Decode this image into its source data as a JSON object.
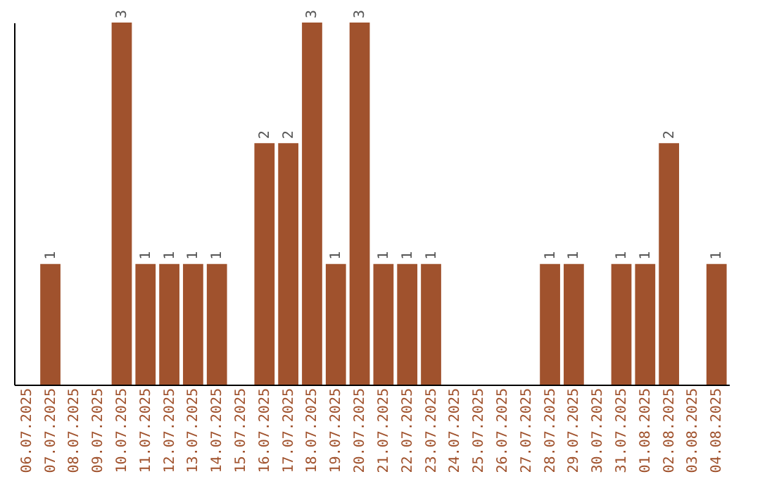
{
  "chart_data": {
    "type": "bar",
    "categories": [
      "06.07.2025",
      "07.07.2025",
      "08.07.2025",
      "09.07.2025",
      "10.07.2025",
      "11.07.2025",
      "12.07.2025",
      "13.07.2025",
      "14.07.2025",
      "15.07.2025",
      "16.07.2025",
      "17.07.2025",
      "18.07.2025",
      "19.07.2025",
      "20.07.2025",
      "21.07.2025",
      "22.07.2025",
      "23.07.2025",
      "24.07.2025",
      "25.07.2025",
      "26.07.2025",
      "27.07.2025",
      "28.07.2025",
      "29.07.2025",
      "30.07.2025",
      "31.07.2025",
      "01.08.2025",
      "02.08.2025",
      "03.08.2025",
      "04.08.2025"
    ],
    "values": [
      0,
      1,
      0,
      0,
      3,
      1,
      1,
      1,
      1,
      0,
      2,
      2,
      3,
      1,
      3,
      1,
      1,
      1,
      0,
      0,
      0,
      0,
      1,
      1,
      0,
      1,
      1,
      2,
      0,
      1
    ],
    "value_labels": [
      null,
      "1",
      null,
      null,
      "3",
      "1",
      "1",
      "1",
      "1",
      null,
      "2",
      "2",
      "3",
      "1",
      "3",
      "1",
      "1",
      "1",
      null,
      null,
      null,
      null,
      "1",
      "1",
      null,
      "1",
      "1",
      "2",
      null,
      "1"
    ],
    "color": "#a0522d",
    "tick_labels": "x",
    "grid": false
  }
}
